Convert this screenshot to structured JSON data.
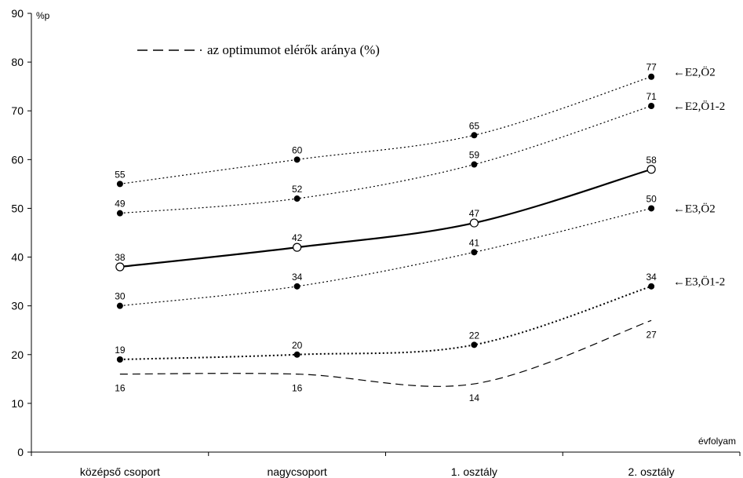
{
  "chart_data": {
    "type": "line",
    "categories": [
      "középső csoport",
      "nagycsoport",
      "1. osztály",
      "2. osztály"
    ],
    "ylim": [
      0,
      90
    ],
    "yticks": [
      0,
      10,
      20,
      30,
      40,
      50,
      60,
      70,
      80,
      90
    ],
    "y_unit_label": "%p",
    "x_unit_label": "évfolyam",
    "grid": false,
    "legend_text": "az optimumot elérők aránya  (%)",
    "series": [
      {
        "name": "E2,Ö2",
        "values": [
          55,
          60,
          65,
          77
        ],
        "style": "dotted",
        "marker": "filled",
        "label_pos": "above"
      },
      {
        "name": "E2,Ö1-2",
        "values": [
          49,
          52,
          59,
          71
        ],
        "style": "dotted",
        "marker": "filled",
        "label_pos": "above"
      },
      {
        "name": "",
        "values": [
          38,
          42,
          47,
          58
        ],
        "style": "solid",
        "marker": "open",
        "label_pos": "above"
      },
      {
        "name": "E3,Ö2",
        "values": [
          30,
          34,
          41,
          50
        ],
        "style": "dotted",
        "marker": "filled",
        "label_pos": "above"
      },
      {
        "name": "E3,Ö1-2",
        "values": [
          19,
          20,
          22,
          34
        ],
        "style": "dotted-heavy",
        "marker": "filled",
        "label_pos": "above"
      },
      {
        "name": "az optimumot elérők aránya  (%)",
        "values": [
          16,
          16,
          14,
          27
        ],
        "style": "dashed",
        "marker": "none",
        "label_pos": "below"
      }
    ],
    "annotations": [
      {
        "text": "←E2,Ö2",
        "y": 78
      },
      {
        "text": "←E2,Ö1-2",
        "y": 71
      },
      {
        "text": "←E3,Ö2",
        "y": 50
      },
      {
        "text": "←E3,Ö1-2",
        "y": 35
      }
    ]
  }
}
